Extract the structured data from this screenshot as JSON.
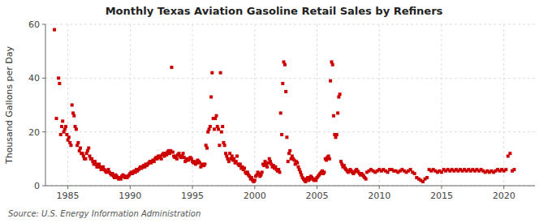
{
  "chart_data": {
    "type": "scatter",
    "title": "Monthly Texas Aviation Gasoline Retail Sales by Refiners",
    "ylabel": "Thousand Gallons per Day",
    "annotations": [
      "Source: U.S. Energy Information Administration"
    ],
    "color": "#cc0000",
    "marker": "square",
    "grid": true,
    "xlim": [
      1983.2,
      2022.5
    ],
    "ylim": [
      0,
      60
    ],
    "xticks": [
      1985,
      1990,
      1995,
      2000,
      2005,
      2010,
      2015,
      2020
    ],
    "yticks": [
      0,
      20,
      40,
      60
    ],
    "x": [
      1983.92,
      1984.08,
      1984.25,
      1984.33,
      1984.42,
      1984.5,
      1984.58,
      1984.67,
      1984.75,
      1984.83,
      1984.92,
      1985.0,
      1985.08,
      1985.17,
      1985.25,
      1985.33,
      1985.42,
      1985.5,
      1985.58,
      1985.67,
      1985.75,
      1985.83,
      1985.92,
      1986.0,
      1986.08,
      1986.17,
      1986.25,
      1986.33,
      1986.42,
      1986.5,
      1986.58,
      1986.67,
      1986.75,
      1986.83,
      1986.92,
      1987.0,
      1987.08,
      1987.17,
      1987.25,
      1987.33,
      1987.42,
      1987.5,
      1987.58,
      1987.67,
      1987.75,
      1987.83,
      1987.92,
      1988.0,
      1988.08,
      1988.17,
      1988.25,
      1988.33,
      1988.42,
      1988.5,
      1988.58,
      1988.67,
      1988.75,
      1988.83,
      1988.92,
      1989.0,
      1989.08,
      1989.17,
      1989.25,
      1989.33,
      1989.42,
      1989.5,
      1989.58,
      1989.67,
      1989.75,
      1989.83,
      1989.92,
      1990.0,
      1990.08,
      1990.17,
      1990.25,
      1990.33,
      1990.42,
      1990.5,
      1990.58,
      1990.67,
      1990.75,
      1990.83,
      1990.92,
      1991.0,
      1991.08,
      1991.17,
      1991.25,
      1991.33,
      1991.42,
      1991.5,
      1991.58,
      1991.67,
      1991.75,
      1991.83,
      1991.92,
      1992.0,
      1992.08,
      1992.17,
      1992.25,
      1992.33,
      1992.42,
      1992.5,
      1992.58,
      1992.67,
      1992.75,
      1992.83,
      1992.92,
      1993.0,
      1993.08,
      1993.17,
      1993.25,
      1993.33,
      1993.42,
      1993.5,
      1993.58,
      1993.67,
      1993.75,
      1993.83,
      1993.92,
      1994.0,
      1994.08,
      1994.17,
      1994.25,
      1994.33,
      1994.42,
      1994.5,
      1994.58,
      1994.67,
      1994.75,
      1994.83,
      1994.92,
      1995.0,
      1995.08,
      1995.17,
      1995.25,
      1995.33,
      1995.42,
      1995.5,
      1995.58,
      1995.67,
      1995.75,
      1995.83,
      1995.92,
      1996.0,
      1996.08,
      1996.17,
      1996.25,
      1996.33,
      1996.42,
      1996.5,
      1996.58,
      1996.67,
      1996.75,
      1996.83,
      1996.92,
      1997.0,
      1997.08,
      1997.17,
      1997.25,
      1997.33,
      1997.42,
      1997.5,
      1997.58,
      1997.67,
      1997.75,
      1997.83,
      1997.92,
      1998.0,
      1998.08,
      1998.17,
      1998.25,
      1998.33,
      1998.42,
      1998.5,
      1998.58,
      1998.67,
      1998.75,
      1998.83,
      1998.92,
      1999.0,
      1999.08,
      1999.17,
      1999.25,
      1999.33,
      1999.42,
      1999.5,
      1999.58,
      1999.67,
      1999.75,
      1999.83,
      1999.92,
      2000.0,
      2000.08,
      2000.17,
      2000.25,
      2000.33,
      2000.42,
      2000.5,
      2000.58,
      2000.67,
      2000.75,
      2000.83,
      2000.92,
      2001.0,
      2001.08,
      2001.17,
      2001.25,
      2001.33,
      2001.42,
      2001.5,
      2001.58,
      2001.67,
      2001.75,
      2001.83,
      2001.92,
      2002.0,
      2002.08,
      2002.17,
      2002.25,
      2002.33,
      2002.42,
      2002.5,
      2002.58,
      2002.67,
      2002.75,
      2002.83,
      2002.92,
      2003.0,
      2003.08,
      2003.17,
      2003.25,
      2003.33,
      2003.42,
      2003.5,
      2003.58,
      2003.67,
      2003.75,
      2003.83,
      2003.92,
      2004.0,
      2004.08,
      2004.17,
      2004.25,
      2004.33,
      2004.42,
      2004.5,
      2004.58,
      2004.67,
      2004.75,
      2004.83,
      2004.92,
      2005.0,
      2005.08,
      2005.17,
      2005.25,
      2005.33,
      2005.42,
      2005.5,
      2005.58,
      2005.67,
      2005.75,
      2005.83,
      2005.92,
      2006.0,
      2006.08,
      2006.17,
      2006.25,
      2006.33,
      2006.42,
      2006.5,
      2006.58,
      2006.67,
      2006.75,
      2006.83,
      2006.92,
      2007.0,
      2007.08,
      2007.17,
      2007.25,
      2007.33,
      2007.42,
      2007.5,
      2007.58,
      2007.67,
      2007.75,
      2007.83,
      2007.92,
      2008.0,
      2008.08,
      2008.17,
      2008.25,
      2008.33,
      2008.42,
      2008.5,
      2008.58,
      2008.67,
      2008.75,
      2008.83,
      2008.92,
      2009.0,
      2009.17,
      2009.33,
      2009.5,
      2009.67,
      2009.83,
      2010.0,
      2010.17,
      2010.33,
      2010.5,
      2010.67,
      2010.83,
      2011.0,
      2011.17,
      2011.33,
      2011.5,
      2011.67,
      2011.83,
      2012.0,
      2012.17,
      2012.33,
      2012.5,
      2012.67,
      2012.83,
      2013.0,
      2013.17,
      2013.33,
      2013.5,
      2013.67,
      2013.83,
      2014.0,
      2014.17,
      2014.33,
      2014.5,
      2014.67,
      2014.83,
      2015.0,
      2015.17,
      2015.33,
      2015.5,
      2015.67,
      2015.83,
      2016.0,
      2016.17,
      2016.33,
      2016.5,
      2016.67,
      2016.83,
      2017.0,
      2017.17,
      2017.33,
      2017.5,
      2017.67,
      2017.83,
      2018.0,
      2018.17,
      2018.33,
      2018.5,
      2018.67,
      2018.83,
      2019.0,
      2019.17,
      2019.33,
      2019.5,
      2019.67,
      2019.83,
      2020.0,
      2020.17,
      2020.33,
      2020.5,
      2020.67,
      2020.83
    ],
    "values": [
      58.0,
      25.0,
      40.0,
      38.0,
      19.0,
      22.0,
      24.0,
      20.0,
      21.0,
      22.0,
      19.0,
      17.0,
      18.0,
      16.0,
      15.0,
      30.0,
      27.0,
      26.0,
      22.0,
      21.0,
      15.0,
      16.0,
      13.0,
      14.0,
      12.0,
      12.0,
      11.0,
      10.0,
      10.0,
      12.0,
      13.0,
      14.0,
      11.0,
      10.0,
      10.0,
      9.0,
      8.0,
      9.0,
      8.0,
      7.0,
      7.0,
      8.0,
      7.0,
      6.0,
      6.5,
      7.0,
      6.0,
      5.5,
      5.0,
      5.5,
      6.0,
      5.0,
      4.5,
      4.0,
      4.5,
      3.5,
      3.0,
      4.0,
      3.5,
      3.0,
      2.5,
      3.0,
      2.5,
      3.5,
      4.0,
      3.5,
      3.0,
      3.5,
      3.0,
      3.5,
      4.0,
      4.5,
      5.0,
      4.5,
      5.0,
      5.5,
      5.0,
      6.0,
      5.5,
      6.0,
      6.5,
      7.0,
      6.5,
      7.0,
      7.5,
      7.0,
      8.0,
      7.5,
      8.0,
      8.5,
      9.0,
      8.5,
      9.0,
      9.5,
      9.0,
      10.0,
      10.5,
      10.0,
      11.0,
      10.5,
      11.0,
      10.0,
      11.5,
      12.0,
      11.0,
      12.0,
      11.5,
      12.5,
      13.0,
      12.0,
      13.0,
      44.0,
      12.5,
      11.0,
      10.5,
      11.0,
      10.0,
      11.5,
      12.0,
      11.0,
      10.5,
      11.0,
      12.0,
      10.5,
      9.0,
      9.5,
      10.0,
      9.5,
      10.0,
      10.5,
      10.0,
      9.0,
      8.5,
      9.0,
      8.0,
      8.5,
      9.5,
      9.0,
      8.5,
      7.0,
      7.5,
      8.0,
      7.5,
      8.0,
      15.0,
      14.0,
      20.0,
      21.0,
      22.0,
      33.0,
      42.0,
      25.0,
      21.0,
      25.0,
      26.0,
      22.0,
      21.0,
      15.0,
      42.0,
      20.0,
      22.0,
      16.0,
      15.0,
      12.0,
      11.0,
      10.0,
      9.0,
      12.0,
      10.0,
      11.0,
      9.5,
      10.0,
      8.5,
      9.0,
      11.0,
      8.0,
      7.5,
      8.0,
      6.5,
      7.0,
      6.0,
      6.5,
      5.0,
      4.5,
      5.0,
      4.0,
      3.5,
      2.5,
      3.0,
      2.0,
      1.5,
      2.0,
      3.5,
      4.0,
      5.0,
      4.5,
      3.5,
      4.0,
      5.0,
      8.0,
      7.5,
      9.0,
      8.0,
      7.0,
      8.5,
      10.0,
      9.0,
      8.0,
      7.0,
      7.5,
      6.5,
      7.0,
      6.0,
      5.5,
      6.0,
      5.0,
      27.0,
      19.0,
      38.0,
      46.0,
      45.0,
      35.0,
      18.0,
      9.0,
      12.0,
      13.0,
      10.0,
      11.0,
      10.0,
      9.5,
      8.0,
      9.0,
      8.5,
      7.0,
      6.0,
      5.0,
      4.0,
      3.0,
      2.5,
      2.0,
      1.5,
      2.5,
      3.0,
      2.0,
      2.5,
      3.5,
      3.0,
      2.5,
      2.0,
      2.5,
      2.0,
      3.0,
      3.5,
      4.0,
      4.5,
      5.0,
      5.5,
      4.5,
      5.0,
      10.0,
      9.5,
      10.5,
      11.0,
      10.0,
      39.0,
      46.0,
      45.0,
      26.0,
      19.0,
      18.0,
      19.0,
      27.0,
      33.0,
      34.0,
      9.0,
      8.0,
      7.0,
      7.5,
      6.5,
      6.0,
      5.5,
      5.0,
      5.5,
      6.0,
      5.5,
      5.0,
      4.5,
      5.0,
      5.5,
      6.0,
      5.5,
      5.0,
      4.5,
      4.0,
      4.5,
      4.0,
      3.5,
      3.0,
      2.5,
      5.0,
      5.5,
      6.0,
      5.5,
      5.0,
      5.5,
      6.0,
      5.5,
      6.0,
      5.5,
      5.0,
      6.0,
      6.0,
      5.5,
      5.5,
      5.0,
      5.5,
      6.0,
      5.5,
      5.0,
      5.5,
      6.0,
      5.0,
      4.5,
      3.0,
      2.5,
      2.0,
      1.5,
      2.5,
      3.0,
      6.0,
      5.5,
      6.0,
      5.5,
      5.0,
      5.5,
      5.0,
      6.0,
      5.5,
      6.0,
      5.5,
      6.0,
      5.5,
      6.0,
      5.5,
      6.0,
      5.5,
      6.0,
      5.5,
      6.0,
      5.5,
      6.0,
      5.5,
      6.0,
      5.5,
      6.0,
      5.5,
      5.0,
      5.5,
      5.0,
      5.5,
      5.0,
      5.5,
      6.0,
      5.5,
      6.0,
      5.5,
      6.0,
      11.0,
      12.0,
      5.5,
      6.0
    ]
  }
}
